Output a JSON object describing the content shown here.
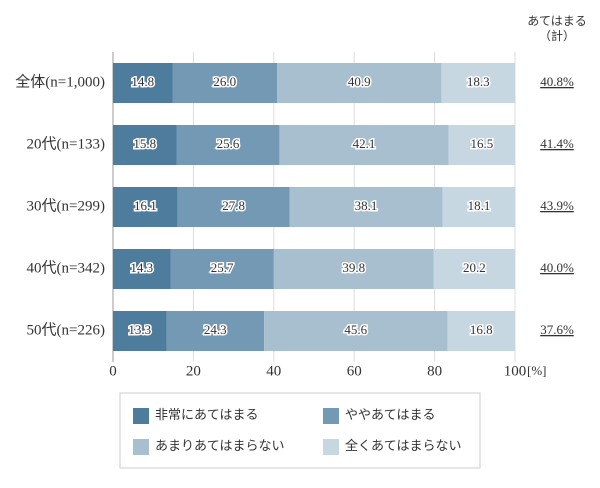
{
  "chart_data": {
    "type": "stacked-barh",
    "categories": [
      "全体(n=1,000)",
      "20代(n=133)",
      "30代(n=299)",
      "40代(n=342)",
      "50代(n=226)"
    ],
    "series": [
      {
        "name": "非常にあてはまる",
        "color": "#4d7c9c",
        "values": [
          14.8,
          15.8,
          16.1,
          14.3,
          13.3
        ],
        "value_labels": [
          "14.8",
          "15.8",
          "16.1",
          "14.3",
          "13.3"
        ]
      },
      {
        "name": "ややあてはまる",
        "color": "#7399b4",
        "values": [
          26.0,
          25.6,
          27.8,
          25.7,
          24.3
        ],
        "value_labels": [
          "26.0",
          "25.6",
          "27.8",
          "25.7",
          "24.3"
        ]
      },
      {
        "name": "あまりあてはまらない",
        "color": "#a8bfcf",
        "values": [
          40.9,
          42.1,
          38.1,
          39.8,
          45.6
        ],
        "value_labels": [
          "40.9",
          "42.1",
          "38.1",
          "39.8",
          "45.6"
        ]
      },
      {
        "name": "全くあてはまらない",
        "color": "#c7d7e2",
        "values": [
          18.3,
          16.5,
          18.1,
          20.2,
          16.8
        ],
        "value_labels": [
          "18.3",
          "16.5",
          "18.1",
          "20.2",
          "16.8"
        ]
      }
    ],
    "totals": {
      "title": [
        "あてはまる",
        "（計）"
      ],
      "values": [
        40.8,
        41.4,
        43.9,
        40.0,
        37.6
      ],
      "value_labels": [
        "40.8%",
        "41.4%",
        "43.9%",
        "40.0%",
        "37.6%"
      ]
    },
    "xlim": [
      0,
      100
    ],
    "xticks": [
      0,
      20,
      40,
      60,
      80,
      100
    ],
    "x_unit": "[%]",
    "grid": true
  }
}
